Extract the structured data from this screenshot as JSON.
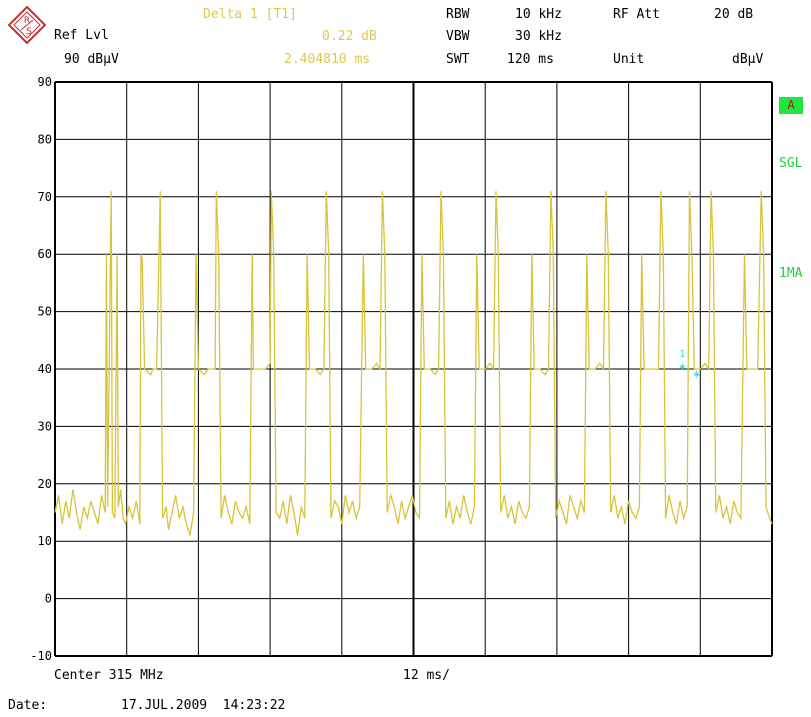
{
  "header": {
    "marker_title": "Delta 1 [T1]",
    "marker_value_db": "0.22 dB",
    "marker_value_time": "2.404810 ms",
    "ref_lvl_label": "Ref Lvl",
    "ref_lvl_value": "90 dBµV",
    "rbw_label": "RBW",
    "rbw_value": "10 kHz",
    "vbw_label": "VBW",
    "vbw_value": "30 kHz",
    "swt_label": "SWT",
    "swt_value": "120 ms",
    "rf_att_label": "RF Att",
    "rf_att_value": "20 dB",
    "unit_label": "Unit",
    "unit_value": "dBµV"
  },
  "side_labels": {
    "trace_a": "A",
    "sgl": "SGL",
    "one_ma": "1MA"
  },
  "footer": {
    "center": "Center 315 MHz",
    "span_div": "12 ms/",
    "date_label": "Date:",
    "date_value": "17.JUL.2009  14:23:22"
  },
  "marker": {
    "label": "1"
  },
  "colors": {
    "trace": "#d8c43a",
    "marker": "#44d8e8",
    "grid": "#000000",
    "status_green": "#18d23a"
  },
  "chart_data": {
    "type": "line",
    "xlabel": "",
    "ylabel": "",
    "ylim": [
      -10,
      90
    ],
    "yticks": [
      "90",
      "80",
      "70",
      "60",
      "50",
      "40",
      "30",
      "20",
      "10",
      "0",
      "-10"
    ],
    "xlim": [
      0,
      120
    ],
    "x_unit": "ms",
    "grid": true,
    "series": [
      {
        "values": [
          {
            "x": 0,
            "y": 15
          },
          {
            "x": 0.6,
            "y": 18
          },
          {
            "x": 1.2,
            "y": 13
          },
          {
            "x": 1.8,
            "y": 17
          },
          {
            "x": 2.4,
            "y": 14
          },
          {
            "x": 3.0,
            "y": 19
          },
          {
            "x": 3.6,
            "y": 15
          },
          {
            "x": 4.2,
            "y": 12
          },
          {
            "x": 4.8,
            "y": 16
          },
          {
            "x": 5.4,
            "y": 14
          },
          {
            "x": 6.0,
            "y": 17
          },
          {
            "x": 6.6,
            "y": 15
          },
          {
            "x": 7.2,
            "y": 13
          },
          {
            "x": 7.8,
            "y": 18
          },
          {
            "x": 8.4,
            "y": 15
          },
          {
            "x": 8.6,
            "y": 60
          },
          {
            "x": 8.8,
            "y": 16
          },
          {
            "x": 9.4,
            "y": 71
          },
          {
            "x": 9.6,
            "y": 15
          },
          {
            "x": 10.0,
            "y": 14
          },
          {
            "x": 10.4,
            "y": 60
          },
          {
            "x": 10.6,
            "y": 16
          },
          {
            "x": 11.0,
            "y": 19
          },
          {
            "x": 11.4,
            "y": 14
          },
          {
            "x": 11.8,
            "y": 13
          },
          {
            "x": 12.4,
            "y": 16
          },
          {
            "x": 13.0,
            "y": 14
          },
          {
            "x": 13.6,
            "y": 17
          },
          {
            "x": 14.2,
            "y": 13
          },
          {
            "x": 14.4,
            "y": 60
          },
          {
            "x": 14.6,
            "y": 59
          },
          {
            "x": 15.0,
            "y": 40
          },
          {
            "x": 16.0,
            "y": 39
          },
          {
            "x": 16.4,
            "y": 40
          },
          {
            "x": 17.0,
            "y": 40
          },
          {
            "x": 17.4,
            "y": 60
          },
          {
            "x": 17.6,
            "y": 71
          },
          {
            "x": 18.0,
            "y": 14
          },
          {
            "x": 18.6,
            "y": 16
          },
          {
            "x": 19.0,
            "y": 12
          },
          {
            "x": 19.6,
            "y": 15
          },
          {
            "x": 20.2,
            "y": 18
          },
          {
            "x": 20.8,
            "y": 14
          },
          {
            "x": 21.4,
            "y": 16
          },
          {
            "x": 22.0,
            "y": 13
          },
          {
            "x": 22.6,
            "y": 11
          },
          {
            "x": 23.2,
            "y": 15
          },
          {
            "x": 23.6,
            "y": 60
          },
          {
            "x": 24.0,
            "y": 40
          },
          {
            "x": 25.0,
            "y": 39
          },
          {
            "x": 25.6,
            "y": 40
          },
          {
            "x": 26.2,
            "y": 40
          },
          {
            "x": 26.8,
            "y": 40
          },
          {
            "x": 27.0,
            "y": 71
          },
          {
            "x": 27.4,
            "y": 60
          },
          {
            "x": 27.8,
            "y": 14
          },
          {
            "x": 28.4,
            "y": 18
          },
          {
            "x": 29.0,
            "y": 15
          },
          {
            "x": 29.6,
            "y": 13
          },
          {
            "x": 30.2,
            "y": 17
          },
          {
            "x": 30.8,
            "y": 15
          },
          {
            "x": 31.4,
            "y": 14
          },
          {
            "x": 32.0,
            "y": 16
          },
          {
            "x": 32.6,
            "y": 13
          },
          {
            "x": 33.0,
            "y": 60
          },
          {
            "x": 33.2,
            "y": 40
          },
          {
            "x": 34.4,
            "y": 40
          },
          {
            "x": 35.2,
            "y": 40
          },
          {
            "x": 36.0,
            "y": 41
          },
          {
            "x": 36.2,
            "y": 71
          },
          {
            "x": 36.6,
            "y": 60
          },
          {
            "x": 37.0,
            "y": 15
          },
          {
            "x": 37.6,
            "y": 14
          },
          {
            "x": 38.2,
            "y": 17
          },
          {
            "x": 38.8,
            "y": 13
          },
          {
            "x": 39.4,
            "y": 18
          },
          {
            "x": 40.0,
            "y": 15
          },
          {
            "x": 40.6,
            "y": 11
          },
          {
            "x": 41.2,
            "y": 16
          },
          {
            "x": 41.8,
            "y": 14
          },
          {
            "x": 42.2,
            "y": 60
          },
          {
            "x": 42.6,
            "y": 40
          },
          {
            "x": 43.6,
            "y": 40
          },
          {
            "x": 44.4,
            "y": 39
          },
          {
            "x": 45.0,
            "y": 40
          },
          {
            "x": 45.4,
            "y": 71
          },
          {
            "x": 45.8,
            "y": 60
          },
          {
            "x": 46.2,
            "y": 14
          },
          {
            "x": 46.8,
            "y": 17
          },
          {
            "x": 47.4,
            "y": 16
          },
          {
            "x": 48.0,
            "y": 13
          },
          {
            "x": 48.6,
            "y": 18
          },
          {
            "x": 49.2,
            "y": 15
          },
          {
            "x": 49.8,
            "y": 17
          },
          {
            "x": 50.4,
            "y": 14
          },
          {
            "x": 51.0,
            "y": 16
          },
          {
            "x": 51.6,
            "y": 60
          },
          {
            "x": 52.0,
            "y": 40
          },
          {
            "x": 53.0,
            "y": 40
          },
          {
            "x": 53.8,
            "y": 41
          },
          {
            "x": 54.4,
            "y": 40
          },
          {
            "x": 54.8,
            "y": 71
          },
          {
            "x": 55.2,
            "y": 60
          },
          {
            "x": 55.6,
            "y": 15
          },
          {
            "x": 56.2,
            "y": 18
          },
          {
            "x": 56.8,
            "y": 16
          },
          {
            "x": 57.4,
            "y": 13
          },
          {
            "x": 58.0,
            "y": 17
          },
          {
            "x": 58.6,
            "y": 14
          },
          {
            "x": 59.2,
            "y": 16
          },
          {
            "x": 59.8,
            "y": 18
          },
          {
            "x": 60.4,
            "y": 15
          },
          {
            "x": 61.0,
            "y": 14
          },
          {
            "x": 61.4,
            "y": 60
          },
          {
            "x": 61.8,
            "y": 40
          },
          {
            "x": 62.8,
            "y": 40
          },
          {
            "x": 63.6,
            "y": 39
          },
          {
            "x": 64.2,
            "y": 40
          },
          {
            "x": 64.6,
            "y": 71
          },
          {
            "x": 65.0,
            "y": 60
          },
          {
            "x": 65.4,
            "y": 14
          },
          {
            "x": 66.0,
            "y": 17
          },
          {
            "x": 66.6,
            "y": 13
          },
          {
            "x": 67.2,
            "y": 16
          },
          {
            "x": 67.8,
            "y": 14
          },
          {
            "x": 68.4,
            "y": 18
          },
          {
            "x": 69.0,
            "y": 15
          },
          {
            "x": 69.6,
            "y": 13
          },
          {
            "x": 70.2,
            "y": 16
          },
          {
            "x": 70.6,
            "y": 60
          },
          {
            "x": 71.0,
            "y": 40
          },
          {
            "x": 72.0,
            "y": 40
          },
          {
            "x": 72.8,
            "y": 41
          },
          {
            "x": 73.4,
            "y": 40
          },
          {
            "x": 73.8,
            "y": 71
          },
          {
            "x": 74.2,
            "y": 60
          },
          {
            "x": 74.6,
            "y": 15
          },
          {
            "x": 75.2,
            "y": 18
          },
          {
            "x": 75.8,
            "y": 14
          },
          {
            "x": 76.4,
            "y": 16
          },
          {
            "x": 77.0,
            "y": 13
          },
          {
            "x": 77.6,
            "y": 17
          },
          {
            "x": 78.2,
            "y": 15
          },
          {
            "x": 78.8,
            "y": 14
          },
          {
            "x": 79.4,
            "y": 16
          },
          {
            "x": 79.8,
            "y": 60
          },
          {
            "x": 80.2,
            "y": 40
          },
          {
            "x": 81.2,
            "y": 40
          },
          {
            "x": 82.0,
            "y": 39
          },
          {
            "x": 82.6,
            "y": 40
          },
          {
            "x": 83.0,
            "y": 71
          },
          {
            "x": 83.4,
            "y": 60
          },
          {
            "x": 83.8,
            "y": 14
          },
          {
            "x": 84.4,
            "y": 17
          },
          {
            "x": 85.0,
            "y": 15
          },
          {
            "x": 85.6,
            "y": 13
          },
          {
            "x": 86.2,
            "y": 18
          },
          {
            "x": 86.8,
            "y": 16
          },
          {
            "x": 87.4,
            "y": 14
          },
          {
            "x": 88.0,
            "y": 17
          },
          {
            "x": 88.6,
            "y": 15
          },
          {
            "x": 89.0,
            "y": 60
          },
          {
            "x": 89.4,
            "y": 40
          },
          {
            "x": 90.4,
            "y": 40
          },
          {
            "x": 91.2,
            "y": 41
          },
          {
            "x": 91.8,
            "y": 40
          },
          {
            "x": 92.2,
            "y": 71
          },
          {
            "x": 92.6,
            "y": 60
          },
          {
            "x": 93.0,
            "y": 15
          },
          {
            "x": 93.6,
            "y": 18
          },
          {
            "x": 94.2,
            "y": 14
          },
          {
            "x": 94.8,
            "y": 16
          },
          {
            "x": 95.4,
            "y": 13
          },
          {
            "x": 96.0,
            "y": 17
          },
          {
            "x": 96.6,
            "y": 15
          },
          {
            "x": 97.2,
            "y": 14
          },
          {
            "x": 97.8,
            "y": 16
          },
          {
            "x": 98.2,
            "y": 60
          },
          {
            "x": 98.6,
            "y": 40
          },
          {
            "x": 99.6,
            "y": 40
          },
          {
            "x": 100.4,
            "y": 40
          },
          {
            "x": 101.0,
            "y": 40
          },
          {
            "x": 101.4,
            "y": 71
          },
          {
            "x": 101.8,
            "y": 60
          },
          {
            "x": 102.2,
            "y": 14
          },
          {
            "x": 102.8,
            "y": 18
          },
          {
            "x": 103.4,
            "y": 15
          },
          {
            "x": 104.0,
            "y": 13
          },
          {
            "x": 104.6,
            "y": 17
          },
          {
            "x": 105.2,
            "y": 14
          },
          {
            "x": 105.8,
            "y": 16
          },
          {
            "x": 106.2,
            "y": 71
          },
          {
            "x": 106.6,
            "y": 60
          },
          {
            "x": 107.0,
            "y": 40
          },
          {
            "x": 108.0,
            "y": 40
          },
          {
            "x": 108.8,
            "y": 41
          },
          {
            "x": 109.4,
            "y": 40
          },
          {
            "x": 109.8,
            "y": 71
          },
          {
            "x": 110.2,
            "y": 60
          },
          {
            "x": 110.6,
            "y": 15
          },
          {
            "x": 111.2,
            "y": 18
          },
          {
            "x": 111.8,
            "y": 14
          },
          {
            "x": 112.4,
            "y": 16
          },
          {
            "x": 113.0,
            "y": 13
          },
          {
            "x": 113.6,
            "y": 17
          },
          {
            "x": 114.2,
            "y": 15
          },
          {
            "x": 114.8,
            "y": 14
          },
          {
            "x": 115.4,
            "y": 60
          },
          {
            "x": 115.8,
            "y": 40
          },
          {
            "x": 116.8,
            "y": 40
          },
          {
            "x": 117.6,
            "y": 40
          },
          {
            "x": 118.2,
            "y": 71
          },
          {
            "x": 118.6,
            "y": 60
          },
          {
            "x": 119.0,
            "y": 16
          },
          {
            "x": 119.6,
            "y": 14
          },
          {
            "x": 120.0,
            "y": 13
          }
        ]
      }
    ],
    "marker_points": [
      {
        "x": 105.0,
        "y": 40.5
      },
      {
        "x": 107.4,
        "y": 39.2
      }
    ]
  }
}
